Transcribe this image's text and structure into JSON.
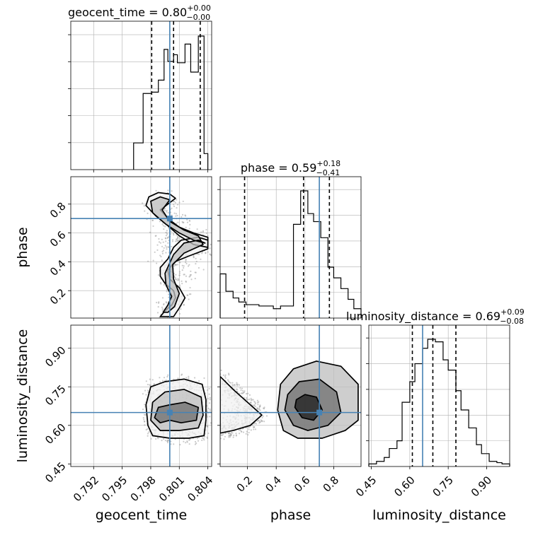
{
  "colors": {
    "truth": "#4682b4",
    "hist": "#000000",
    "grid": "#b0b0b0",
    "scatter": "#9a9a9a"
  },
  "chart_data": {
    "type": "corner",
    "parameters": [
      "geocent_time",
      "phase",
      "luminosity_distance"
    ],
    "truths": {
      "geocent_time": 0.8,
      "phase": 0.7,
      "luminosity_distance": 0.65
    },
    "ranges": {
      "geocent_time": [
        0.7896,
        0.8044
      ],
      "phase": [
        0.01,
        0.99
      ],
      "luminosity_distance": [
        0.44,
        0.99
      ]
    },
    "ticks": {
      "geocent_time": {
        "values": [
          0.792,
          0.795,
          0.798,
          0.801,
          0.804
        ],
        "labels": [
          "0.792",
          "0.795",
          "0.798",
          "0.801",
          "0.804"
        ]
      },
      "phase": {
        "values": [
          0.2,
          0.4,
          0.6,
          0.8
        ],
        "labels": [
          "0.2",
          "0.4",
          "0.6",
          "0.8"
        ]
      },
      "luminosity_distance": {
        "values": [
          0.45,
          0.6,
          0.75,
          0.9
        ],
        "labels": [
          "0.45",
          "0.60",
          "0.75",
          "0.90"
        ]
      }
    },
    "axis_labels": {
      "geocent_time": "geocent_time",
      "phase": "phase",
      "luminosity_distance": "luminosity_distance"
    },
    "titles": {
      "geocent_time": {
        "main": "geocent_time = 0.80",
        "plus": "+0.00",
        "minus": "−0.00"
      },
      "phase": {
        "main": "phase = 0.59",
        "plus": "+0.18",
        "minus": "−0.41"
      },
      "luminosity_distance": {
        "main": "luminosity_distance = 0.69",
        "plus": "+0.09",
        "minus": "−0.08"
      }
    },
    "quantiles": {
      "geocent_time": [
        0.7981,
        0.8004,
        0.8032
      ],
      "phase": [
        0.18,
        0.59,
        0.77
      ],
      "luminosity_distance": [
        0.61,
        0.69,
        0.78
      ]
    },
    "histograms": {
      "geocent_time": {
        "edges": [
          0.7962,
          0.7972,
          0.7981,
          0.7988,
          0.7994,
          0.7998,
          0.8004,
          0.8008,
          0.8016,
          0.8022,
          0.803,
          0.8036,
          0.804
        ],
        "counts": [
          0.2,
          0.57,
          0.58,
          0.67,
          0.9,
          0.81,
          0.86,
          0.8,
          0.94,
          0.73,
          1.0,
          0.12
        ]
      },
      "phase": {
        "edges": [
          0.01,
          0.05,
          0.1,
          0.14,
          0.19,
          0.24,
          0.28,
          0.33,
          0.38,
          0.43,
          0.47,
          0.52,
          0.57,
          0.62,
          0.66,
          0.71,
          0.76,
          0.8,
          0.85,
          0.9,
          0.94,
          0.99
        ],
        "counts": [
          0.33,
          0.2,
          0.15,
          0.12,
          0.1,
          0.1,
          0.09,
          0.09,
          0.07,
          0.09,
          0.09,
          0.7,
          0.95,
          0.78,
          0.72,
          0.6,
          0.38,
          0.3,
          0.22,
          0.14,
          0.07
        ]
      },
      "luminosity_distance": {
        "edges": [
          0.44,
          0.47,
          0.5,
          0.52,
          0.55,
          0.57,
          0.6,
          0.62,
          0.65,
          0.67,
          0.7,
          0.73,
          0.75,
          0.78,
          0.8,
          0.83,
          0.86,
          0.88,
          0.91,
          0.94,
          0.96,
          0.99
        ],
        "counts": [
          0.02,
          0.04,
          0.07,
          0.14,
          0.2,
          0.5,
          0.66,
          0.8,
          0.92,
          0.99,
          0.97,
          0.83,
          0.75,
          0.59,
          0.44,
          0.3,
          0.17,
          0.1,
          0.04,
          0.03,
          0.02
        ]
      }
    },
    "contours": {
      "phase_vs_geocent_time": [
        [
          [
            0.799,
            0.02
          ],
          [
            0.7995,
            0.06
          ],
          [
            0.8002,
            0.1
          ],
          [
            0.8006,
            0.15
          ],
          [
            0.8004,
            0.2
          ],
          [
            0.7995,
            0.25
          ],
          [
            0.799,
            0.3
          ],
          [
            0.799,
            0.36
          ],
          [
            0.7998,
            0.42
          ],
          [
            0.8004,
            0.5
          ],
          [
            0.8012,
            0.55
          ],
          [
            0.803,
            0.57
          ],
          [
            0.804,
            0.55
          ],
          [
            0.804,
            0.5
          ],
          [
            0.8025,
            0.52
          ],
          [
            0.801,
            0.58
          ],
          [
            0.7998,
            0.65
          ],
          [
            0.7985,
            0.72
          ],
          [
            0.7975,
            0.79
          ],
          [
            0.7978,
            0.85
          ],
          [
            0.7988,
            0.88
          ],
          [
            0.8,
            0.87
          ],
          [
            0.8006,
            0.84
          ],
          [
            0.7998,
            0.8
          ],
          [
            0.799,
            0.76
          ],
          [
            0.7998,
            0.7
          ],
          [
            0.801,
            0.64
          ],
          [
            0.8025,
            0.6
          ],
          [
            0.804,
            0.57
          ],
          [
            0.804,
            0.49
          ],
          [
            0.802,
            0.44
          ],
          [
            0.8005,
            0.4
          ],
          [
            0.7998,
            0.34
          ],
          [
            0.8,
            0.28
          ],
          [
            0.801,
            0.22
          ],
          [
            0.8016,
            0.15
          ],
          [
            0.801,
            0.08
          ],
          [
            0.8004,
            0.02
          ]
        ],
        [
          [
            0.7993,
            0.05
          ],
          [
            0.7998,
            0.1
          ],
          [
            0.8002,
            0.16
          ],
          [
            0.7996,
            0.24
          ],
          [
            0.7995,
            0.32
          ],
          [
            0.8004,
            0.45
          ],
          [
            0.8015,
            0.53
          ],
          [
            0.803,
            0.55
          ],
          [
            0.8037,
            0.53
          ],
          [
            0.8025,
            0.55
          ],
          [
            0.801,
            0.6
          ],
          [
            0.7996,
            0.66
          ],
          [
            0.7982,
            0.74
          ],
          [
            0.798,
            0.82
          ],
          [
            0.799,
            0.85
          ],
          [
            0.8,
            0.83
          ],
          [
            0.7992,
            0.76
          ],
          [
            0.8,
            0.68
          ],
          [
            0.8015,
            0.62
          ],
          [
            0.803,
            0.58
          ],
          [
            0.8035,
            0.52
          ],
          [
            0.8015,
            0.46
          ],
          [
            0.8003,
            0.38
          ],
          [
            0.8004,
            0.28
          ],
          [
            0.801,
            0.18
          ],
          [
            0.8005,
            0.09
          ],
          [
            0.7998,
            0.05
          ]
        ]
      ],
      "luminosity_distance_vs_geocent_time": [
        [
          [
            0.7977,
            0.6
          ],
          [
            0.7982,
            0.56
          ],
          [
            0.8,
            0.55
          ],
          [
            0.802,
            0.55
          ],
          [
            0.8036,
            0.56
          ],
          [
            0.8038,
            0.62
          ],
          [
            0.8038,
            0.7
          ],
          [
            0.8034,
            0.76
          ],
          [
            0.8015,
            0.78
          ],
          [
            0.7995,
            0.77
          ],
          [
            0.798,
            0.75
          ],
          [
            0.7975,
            0.68
          ]
        ],
        [
          [
            0.798,
            0.62
          ],
          [
            0.799,
            0.58
          ],
          [
            0.801,
            0.58
          ],
          [
            0.803,
            0.59
          ],
          [
            0.8035,
            0.64
          ],
          [
            0.8033,
            0.71
          ],
          [
            0.8015,
            0.74
          ],
          [
            0.7995,
            0.73
          ],
          [
            0.7982,
            0.69
          ]
        ],
        [
          [
            0.7984,
            0.63
          ],
          [
            0.799,
            0.61
          ],
          [
            0.8,
            0.62
          ],
          [
            0.8012,
            0.61
          ],
          [
            0.8028,
            0.62
          ],
          [
            0.803,
            0.67
          ],
          [
            0.8016,
            0.69
          ],
          [
            0.8,
            0.68
          ],
          [
            0.7988,
            0.67
          ]
        ]
      ],
      "luminosity_distance_vs_phase": [
        [
          [
            0.01,
            0.79
          ],
          [
            0.1,
            0.74
          ],
          [
            0.22,
            0.68
          ],
          [
            0.3,
            0.64
          ],
          [
            0.22,
            0.6
          ],
          [
            0.1,
            0.58
          ],
          [
            0.01,
            0.57
          ]
        ],
        [
          [
            0.41,
            0.66
          ],
          [
            0.45,
            0.58
          ],
          [
            0.55,
            0.55
          ],
          [
            0.72,
            0.55
          ],
          [
            0.88,
            0.58
          ],
          [
            0.97,
            0.62
          ],
          [
            0.97,
            0.76
          ],
          [
            0.85,
            0.83
          ],
          [
            0.68,
            0.85
          ],
          [
            0.52,
            0.82
          ],
          [
            0.43,
            0.76
          ]
        ],
        [
          [
            0.46,
            0.66
          ],
          [
            0.52,
            0.6
          ],
          [
            0.62,
            0.58
          ],
          [
            0.76,
            0.6
          ],
          [
            0.85,
            0.65
          ],
          [
            0.82,
            0.73
          ],
          [
            0.7,
            0.78
          ],
          [
            0.56,
            0.77
          ],
          [
            0.48,
            0.72
          ]
        ],
        [
          [
            0.53,
            0.67
          ],
          [
            0.58,
            0.63
          ],
          [
            0.66,
            0.62
          ],
          [
            0.72,
            0.66
          ],
          [
            0.68,
            0.71
          ],
          [
            0.6,
            0.72
          ],
          [
            0.54,
            0.7
          ]
        ]
      ]
    }
  }
}
